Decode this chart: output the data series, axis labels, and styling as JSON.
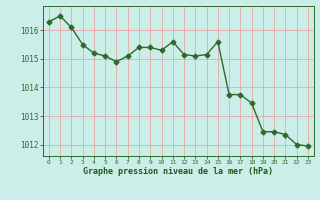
{
  "x": [
    0,
    1,
    2,
    3,
    4,
    5,
    6,
    7,
    8,
    9,
    10,
    11,
    12,
    13,
    14,
    15,
    16,
    17,
    18,
    19,
    20,
    21,
    22,
    23
  ],
  "y": [
    1016.3,
    1016.5,
    1016.1,
    1015.5,
    1015.2,
    1015.1,
    1014.9,
    1015.1,
    1015.4,
    1015.4,
    1015.3,
    1015.6,
    1015.15,
    1015.1,
    1015.15,
    1015.6,
    1013.75,
    1013.75,
    1013.45,
    1012.45,
    1012.45,
    1012.35,
    1012.0,
    1011.95
  ],
  "line_color": "#2d6a2d",
  "marker": "D",
  "markersize": 2.5,
  "linewidth": 1.0,
  "background_color": "#cceee8",
  "grid_color": "#ee9999",
  "xlabel": "Graphe pression niveau de la mer (hPa)",
  "xlabel_color": "#1a5c1a",
  "tick_color": "#2d6a2d",
  "ylabel_ticks": [
    1012,
    1013,
    1014,
    1015,
    1016
  ],
  "xlim": [
    -0.5,
    23.5
  ],
  "ylim": [
    1011.6,
    1016.85
  ],
  "xtick_labels": [
    "0",
    "1",
    "2",
    "3",
    "4",
    "5",
    "6",
    "7",
    "8",
    "9",
    "10",
    "11",
    "12",
    "13",
    "14",
    "15",
    "16",
    "17",
    "18",
    "19",
    "20",
    "21",
    "22",
    "23"
  ]
}
